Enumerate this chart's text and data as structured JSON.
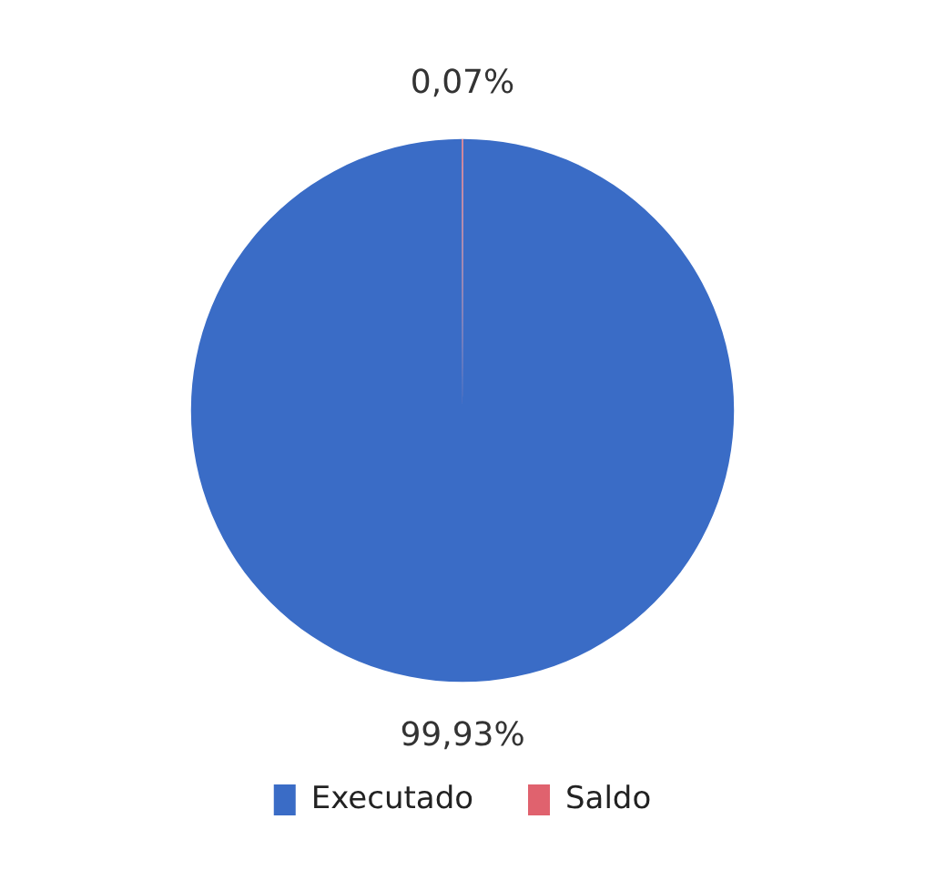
{
  "chart_data": {
    "type": "pie",
    "categories": [
      "Executado",
      "Saldo"
    ],
    "values": [
      99.93,
      0.07
    ],
    "colors": [
      "#3a6cc6",
      "#e0626e"
    ],
    "value_labels": [
      "99,93%",
      "0,07%"
    ],
    "legend": "bottom"
  }
}
